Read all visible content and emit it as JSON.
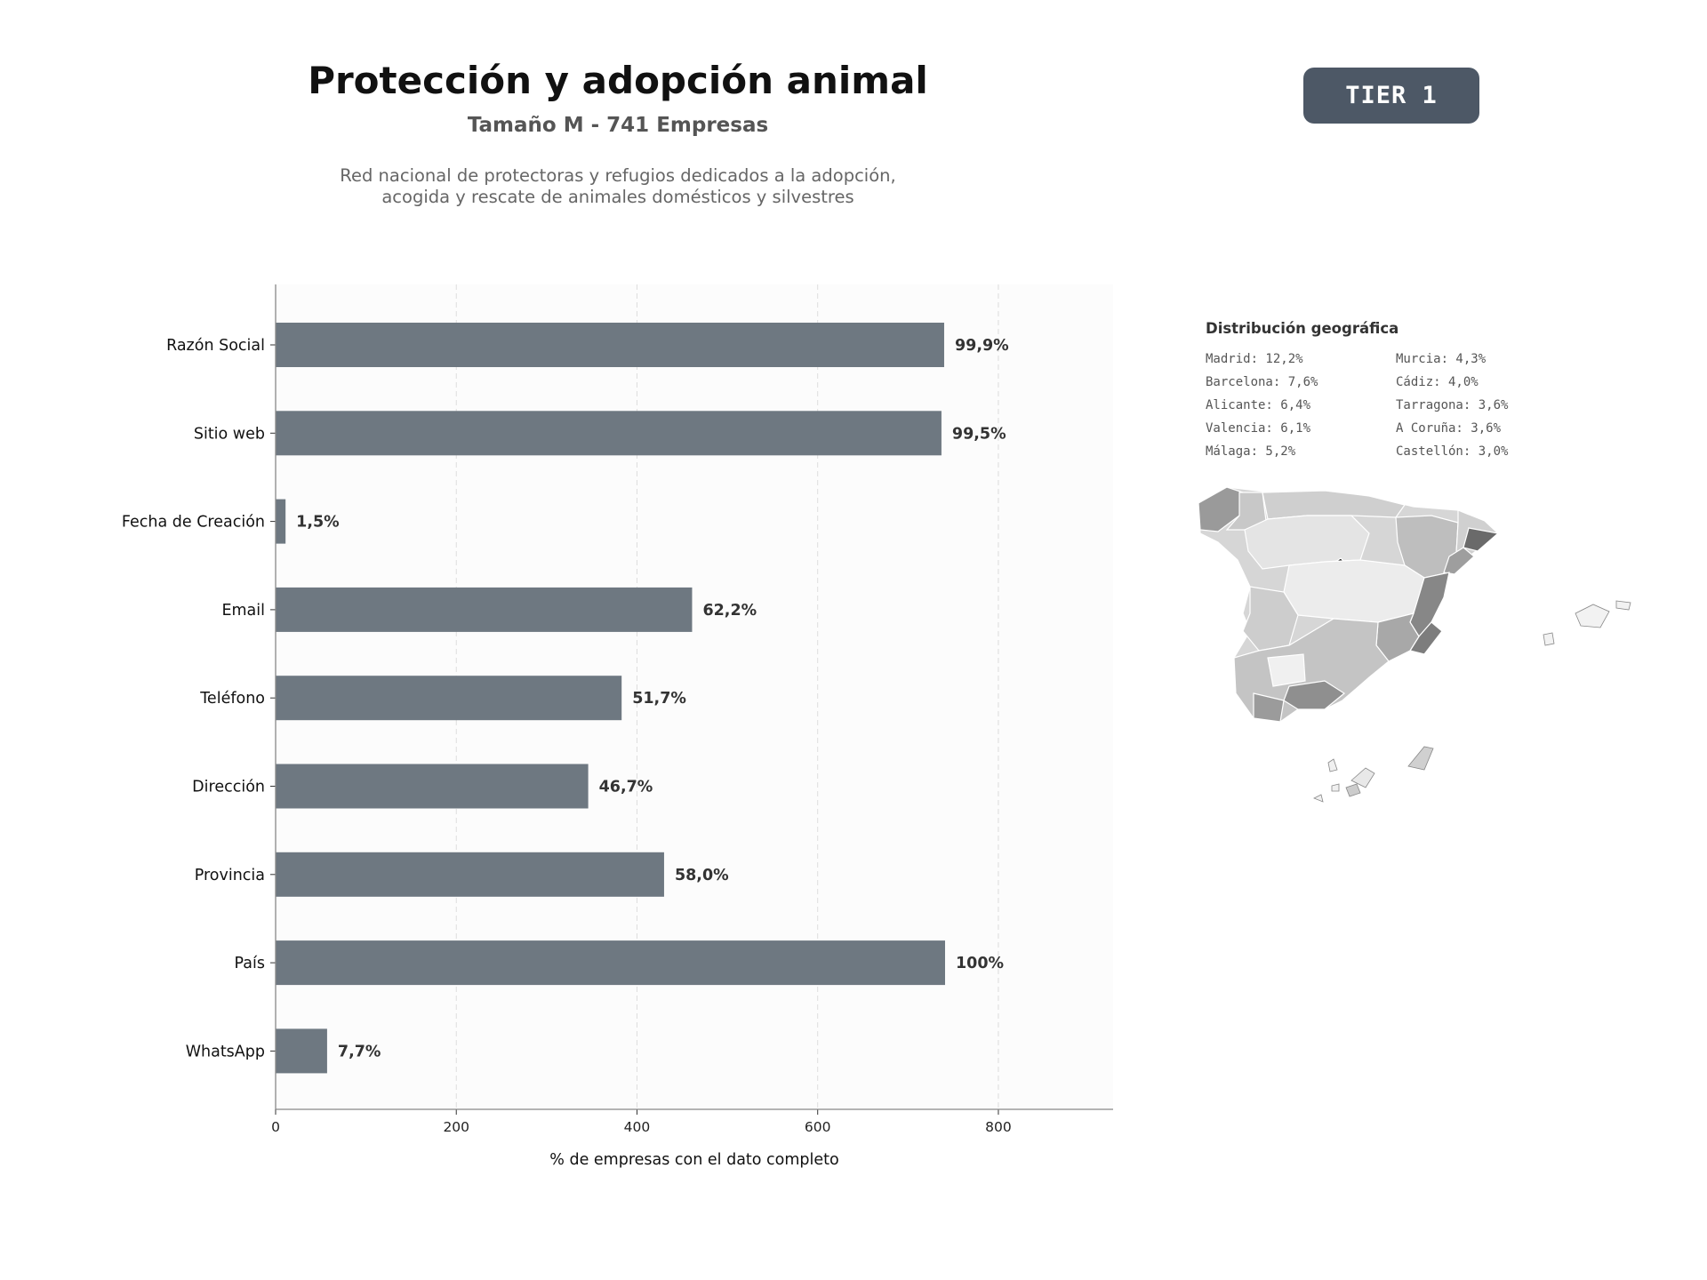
{
  "header": {
    "title": "Protección y adopción animal",
    "subtitle": "Tamaño M - 741 Empresas",
    "description_line1": "Red nacional de protectoras y refugios dedicados a la adopción,",
    "description_line2": "acogida y rescate de animales domésticos y silvestres"
  },
  "badge": {
    "label": "TIER 1",
    "color": "#4d5866"
  },
  "chart_data": {
    "type": "bar",
    "orientation": "horizontal",
    "title": "",
    "xlabel": "% de empresas con el dato completo",
    "ylabel": "",
    "xlim": [
      0,
      927
    ],
    "xticks": [
      0,
      200,
      400,
      600,
      800
    ],
    "grid": "vertical dashed",
    "bar_color": "#6e7881",
    "categories": [
      "Razón Social",
      "Sitio web",
      "Fecha de Creación",
      "Email",
      "Teléfono",
      "Dirección",
      "Provincia",
      "País",
      "WhatsApp"
    ],
    "values": [
      740,
      737,
      11,
      461,
      383,
      346,
      430,
      741,
      57
    ],
    "value_labels": [
      "99,9%",
      "99,5%",
      "1,5%",
      "62,2%",
      "51,7%",
      "46,7%",
      "58,0%",
      "100%",
      "7,7%"
    ]
  },
  "geo": {
    "title": "Distribución geográfica",
    "items": [
      "Madrid: 12,2%",
      "Barcelona: 7,6%",
      "Alicante: 6,4%",
      "Valencia: 6,1%",
      "Málaga: 5,2%",
      "Murcia: 4,3%",
      "Cádiz: 4,0%",
      "Tarragona: 3,6%",
      "A Coruña: 3,6%",
      "Castellón: 3,0%"
    ]
  }
}
